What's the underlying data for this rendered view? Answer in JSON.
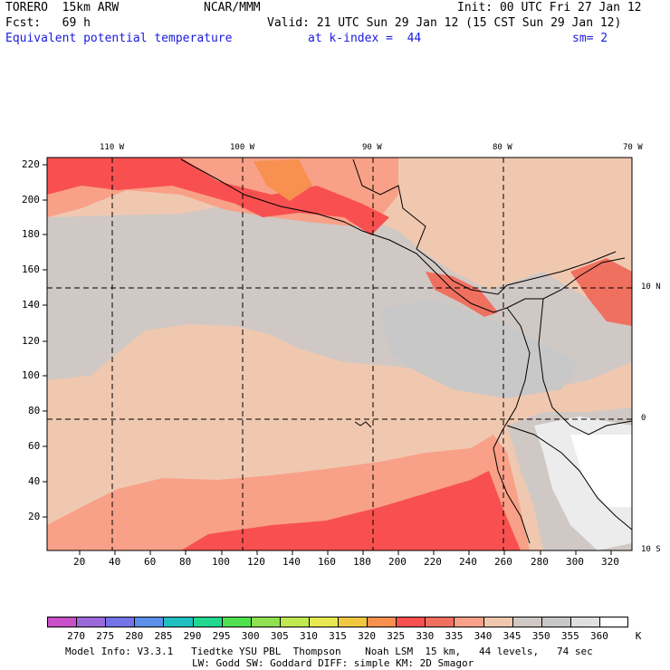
{
  "header": {
    "model": "TORERO  15km ARW",
    "center": "NCAR/MMM",
    "init": "Init: 00 UTC Fri 27 Jan 12",
    "fcst": "Fcst:   69 h",
    "valid": "Valid: 21 UTC Sun 29 Jan 12 (15 CST Sun 29 Jan 12)",
    "field": "Equivalent potential temperature",
    "level": "at k-index =  44",
    "smoothing": "sm= 2"
  },
  "map": {
    "top_lon_labels": [
      "110 W",
      "100 W",
      "90 W",
      "80 W",
      "70 W"
    ],
    "right_lat_labels": [
      "10 N",
      "0",
      "10 S"
    ],
    "left_grid_labels": [
      "220",
      "200",
      "180",
      "160",
      "140",
      "120",
      "100",
      "80",
      "60",
      "40",
      "20"
    ],
    "bottom_grid_labels": [
      "20",
      "40",
      "60",
      "80",
      "100",
      "120",
      "140",
      "160",
      "180",
      "200",
      "220",
      "240",
      "260",
      "280",
      "300",
      "320"
    ]
  },
  "legend": {
    "unit": "K",
    "labels": [
      "270",
      "275",
      "280",
      "285",
      "290",
      "295",
      "300",
      "305",
      "310",
      "315",
      "320",
      "325",
      "330",
      "335",
      "340",
      "345",
      "350",
      "355",
      "360"
    ],
    "colors": [
      "#c850c8",
      "#9c6ad8",
      "#7474e8",
      "#5a90e8",
      "#20c0c0",
      "#20d890",
      "#50e050",
      "#90e050",
      "#c0e850",
      "#e8e850",
      "#f0c840",
      "#f89050",
      "#f85050",
      "#f07060",
      "#f8a088",
      "#f0c8b0",
      "#d0c8c4",
      "#c8c8c8",
      "#e0e0e0",
      "#ffffff"
    ]
  },
  "footer": {
    "line1": "Model Info: V3.3.1   Tiedtke YSU PBL  Thompson    Noah LSM  15 km,   44 levels,   74 sec",
    "line2": "LW: Godd SW: Goddard DIFF: simple KM: 2D Smagor"
  }
}
